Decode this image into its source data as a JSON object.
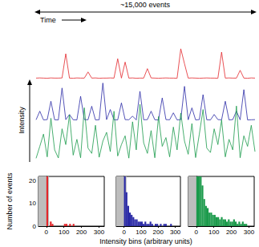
{
  "labels": {
    "span": "~15,000 events",
    "time": "Time",
    "intensity": "Intensity",
    "hist_y": "Number of events",
    "hist_x": "Intensity bins (arbitrary units)"
  },
  "chart_data": [
    {
      "type": "line",
      "color": "#e3262b",
      "tick_labels": false,
      "xlim": [
        0,
        59
      ],
      "ylim": [
        0,
        320
      ],
      "x": [
        0,
        1,
        2,
        3,
        4,
        5,
        6,
        7,
        8,
        9,
        10,
        11,
        12,
        13,
        14,
        15,
        16,
        17,
        18,
        19,
        20,
        21,
        22,
        23,
        24,
        25,
        26,
        27,
        28,
        29,
        30,
        31,
        32,
        33,
        34,
        35,
        36,
        37,
        38,
        39,
        40,
        41,
        42,
        43,
        44,
        45,
        46,
        47,
        48,
        49,
        50,
        51,
        52,
        53,
        54,
        55,
        56,
        57,
        58,
        59
      ],
      "values": [
        3,
        4,
        3,
        2,
        4,
        3,
        3,
        4,
        150,
        3,
        2,
        4,
        3,
        3,
        40,
        3,
        4,
        2,
        3,
        3,
        4,
        3,
        120,
        3,
        100,
        3,
        4,
        2,
        3,
        3,
        60,
        4,
        3,
        2,
        3,
        4,
        3,
        3,
        2,
        180,
        90,
        3,
        4,
        3,
        2,
        3,
        4,
        3,
        3,
        2,
        160,
        3,
        4,
        3,
        3,
        50,
        3,
        2,
        4,
        3
      ]
    },
    {
      "type": "line",
      "color": "#2a2aa6",
      "tick_labels": false,
      "xlim": [
        0,
        59
      ],
      "ylim": [
        0,
        320
      ],
      "x": [
        0,
        1,
        2,
        3,
        4,
        5,
        6,
        7,
        8,
        9,
        10,
        11,
        12,
        13,
        14,
        15,
        16,
        17,
        18,
        19,
        20,
        21,
        22,
        23,
        24,
        25,
        26,
        27,
        28,
        29,
        30,
        31,
        32,
        33,
        34,
        35,
        36,
        37,
        38,
        39,
        40,
        41,
        42,
        43,
        44,
        45,
        46,
        47,
        48,
        49,
        50,
        51,
        52,
        53,
        54,
        55,
        56,
        57,
        58,
        59
      ],
      "values": [
        8,
        60,
        7,
        9,
        120,
        8,
        7,
        200,
        9,
        40,
        8,
        7,
        150,
        9,
        8,
        90,
        7,
        8,
        230,
        9,
        70,
        8,
        7,
        110,
        9,
        8,
        30,
        7,
        180,
        8,
        9,
        60,
        8,
        7,
        140,
        9,
        8,
        50,
        7,
        9,
        210,
        8,
        80,
        7,
        9,
        160,
        8,
        7,
        40,
        9,
        8,
        120,
        7,
        9,
        60,
        8,
        190,
        7,
        8,
        9
      ]
    },
    {
      "type": "line",
      "color": "#1b9a4b",
      "tick_labels": false,
      "xlim": [
        0,
        59
      ],
      "ylim": [
        0,
        320
      ],
      "x": [
        0,
        1,
        2,
        3,
        4,
        5,
        6,
        7,
        8,
        9,
        10,
        11,
        12,
        13,
        14,
        15,
        16,
        17,
        18,
        19,
        20,
        21,
        22,
        23,
        24,
        25,
        26,
        27,
        28,
        29,
        30,
        31,
        32,
        33,
        34,
        35,
        36,
        37,
        38,
        39,
        40,
        41,
        42,
        43,
        44,
        45,
        46,
        47,
        48,
        49,
        50,
        51,
        52,
        53,
        54,
        55,
        56,
        57,
        58,
        59
      ],
      "values": [
        12,
        80,
        150,
        20,
        240,
        60,
        14,
        180,
        90,
        260,
        30,
        120,
        15,
        300,
        70,
        40,
        200,
        18,
        110,
        160,
        50,
        280,
        25,
        90,
        140,
        13,
        220,
        60,
        320,
        100,
        40,
        170,
        15,
        250,
        80,
        130,
        20,
        190,
        60,
        270,
        110,
        35,
        210,
        16,
        150,
        290,
        70,
        45,
        180,
        90,
        230,
        20,
        120,
        60,
        310,
        15,
        140,
        80,
        200,
        50
      ]
    },
    {
      "type": "histogram",
      "color": "#e3262b",
      "xlim": [
        -45,
        330
      ],
      "ylim": [
        0,
        22
      ],
      "xticks": [
        0,
        100,
        200,
        300
      ],
      "yticks": [
        0,
        10,
        20
      ],
      "shaded_range": [
        -45,
        15
      ],
      "bins": [
        0,
        10,
        20,
        30,
        40,
        50,
        60,
        70,
        80,
        90,
        100,
        110,
        120,
        130,
        140,
        150,
        160,
        170,
        180,
        190,
        200,
        210,
        220,
        230,
        240,
        250,
        260,
        270,
        280,
        290,
        300,
        310,
        320,
        330
      ],
      "counts": [
        30,
        0,
        2,
        1,
        0,
        0,
        0,
        0,
        0,
        0,
        1,
        1,
        0,
        1,
        0,
        1,
        0,
        0,
        0,
        0,
        0,
        0,
        0,
        0,
        0,
        0,
        0,
        0,
        0,
        0,
        0,
        0,
        0
      ]
    },
    {
      "type": "histogram",
      "color": "#2a2aa6",
      "tick_labels": "x",
      "xlim": [
        -45,
        330
      ],
      "ylim": [
        0,
        22
      ],
      "xticks": [
        0,
        100,
        200,
        300
      ],
      "yticks": [
        0,
        10,
        20
      ],
      "shaded_range": [
        -45,
        15
      ],
      "bins": [
        0,
        10,
        20,
        30,
        40,
        50,
        60,
        70,
        80,
        90,
        100,
        110,
        120,
        130,
        140,
        150,
        160,
        170,
        180,
        190,
        200,
        210,
        220,
        230,
        240,
        250,
        260,
        270,
        280,
        290,
        300,
        310,
        320,
        330
      ],
      "counts": [
        30,
        15,
        9,
        6,
        5,
        4,
        3,
        3,
        2,
        2,
        2,
        1,
        2,
        1,
        1,
        2,
        1,
        0,
        1,
        1,
        0,
        1,
        0,
        1,
        1,
        0,
        0,
        1,
        0,
        0,
        0,
        0,
        0
      ]
    },
    {
      "type": "histogram",
      "color": "#1b9a4b",
      "tick_labels": "x",
      "xlim": [
        -45,
        330
      ],
      "ylim": [
        0,
        22
      ],
      "xticks": [
        0,
        100,
        200,
        300
      ],
      "yticks": [
        0,
        10,
        20
      ],
      "shaded_range": [
        -45,
        15
      ],
      "bins": [
        0,
        10,
        20,
        30,
        40,
        50,
        60,
        70,
        80,
        90,
        100,
        110,
        120,
        130,
        140,
        150,
        160,
        170,
        180,
        190,
        200,
        210,
        220,
        230,
        240,
        250,
        260,
        270,
        280,
        290,
        300,
        310,
        320,
        330
      ],
      "counts": [
        30,
        30,
        25,
        18,
        12,
        9,
        8,
        6,
        6,
        5,
        5,
        4,
        4,
        3,
        4,
        3,
        3,
        2,
        3,
        2,
        2,
        3,
        2,
        1,
        2,
        1,
        2,
        1,
        1,
        0,
        0,
        0,
        0
      ]
    }
  ]
}
